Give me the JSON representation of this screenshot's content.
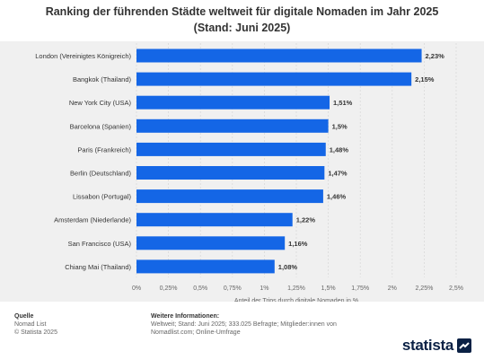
{
  "title_line1": "Ranking der führenden Städte weltweit für digitale Nomaden im Jahr 2025",
  "title_line2": "(Stand: Juni 2025)",
  "chart_data": {
    "type": "bar",
    "orientation": "horizontal",
    "categories": [
      "London (Vereinigtes Königreich)",
      "Bangkok (Thailand)",
      "New York City (USA)",
      "Barcelona (Spanien)",
      "Paris (Frankreich)",
      "Berlin (Deutschland)",
      "Lissabon (Portugal)",
      "Amsterdam (Niederlande)",
      "San Francisco (USA)",
      "Chiang Mai (Thailand)"
    ],
    "values": [
      2.23,
      2.15,
      1.51,
      1.5,
      1.48,
      1.47,
      1.46,
      1.22,
      1.16,
      1.08
    ],
    "value_labels": [
      "2,23%",
      "2,15%",
      "1,51%",
      "1,5%",
      "1,48%",
      "1,47%",
      "1,46%",
      "1,22%",
      "1,16%",
      "1,08%"
    ],
    "xlim": [
      0,
      2.5
    ],
    "x_ticks": [
      0,
      0.25,
      0.5,
      0.75,
      1,
      1.25,
      1.5,
      1.75,
      2,
      2.25,
      2.5
    ],
    "x_tick_labels": [
      "0%",
      "0,25%",
      "0,5%",
      "0,75%",
      "1%",
      "1,25%",
      "1,5%",
      "1,75%",
      "2%",
      "2,25%",
      "2,5%"
    ],
    "xlabel": "Anteil der Trips durch digitale Nomaden in %",
    "ylabel": "",
    "grid": "vertical",
    "bar_color": "#1466e6"
  },
  "footer": {
    "source_heading": "Quelle",
    "source_line1": "Nomad List",
    "source_line2": "© Statista 2025",
    "info_heading": "Weitere Informationen:",
    "info_line1": "Weltweit; Stand: Juni 2025; 333.025 Befragte; Mitglieder:innen von",
    "info_line2": "Nomadlist.com; Online-Umfrage"
  },
  "brand": {
    "name": "statista",
    "icon": "statista-logo-icon"
  }
}
